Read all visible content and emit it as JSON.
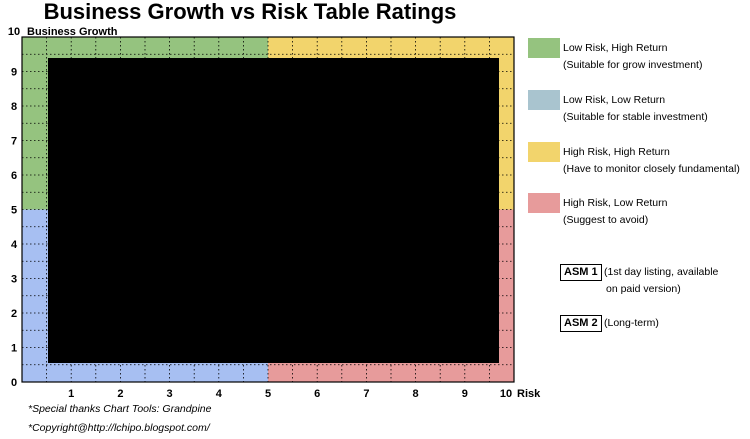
{
  "chart_data": {
    "type": "heatmap",
    "title": "Business Growth vs Risk Table Ratings",
    "ylabel": "Business Growth",
    "xlabel": "Risk",
    "xlim": [
      0,
      10
    ],
    "ylim": [
      0,
      10
    ],
    "x_ticks": [
      "1",
      "2",
      "3",
      "4",
      "5",
      "6",
      "7",
      "8",
      "9",
      "10"
    ],
    "y_ticks": [
      "0",
      "1",
      "2",
      "3",
      "4",
      "5",
      "6",
      "7",
      "8",
      "9",
      "10"
    ],
    "grid": true,
    "quadrants": [
      {
        "name": "Low Risk, High Return",
        "note": "(Suitable for grow investment)",
        "x": [
          0,
          5
        ],
        "y": [
          5,
          10
        ],
        "color": "#95c37f"
      },
      {
        "name": "Low Risk, Low Return",
        "note": "(Suitable for stable investment)",
        "x": [
          0,
          5
        ],
        "y": [
          0,
          5
        ],
        "color": "#a9c4cf"
      },
      {
        "name": "High Risk, High Return",
        "note": "(Have to monitor closely  fundamental)",
        "x": [
          5,
          10
        ],
        "y": [
          5,
          10
        ],
        "color": "#f2d46c"
      },
      {
        "name": "High Risk, Low Return",
        "note": "(Suggest to avoid)",
        "x": [
          5,
          10
        ],
        "y": [
          0,
          5
        ],
        "color": "#e79b9b"
      }
    ],
    "plot_area_colors": {
      "low_risk_low_return_grid": "#a7bff2"
    }
  },
  "markers": [
    {
      "label": "ASM 1",
      "description_line1": "(1st day listing, available",
      "description_line2": "on paid version)"
    },
    {
      "label": "ASM 2",
      "description_line1": "(Long-term)"
    }
  ],
  "footnotes": [
    "*Special thanks Chart Tools: Grandpine",
    "*Copyright@http://lchipo.blogspot.com/"
  ]
}
